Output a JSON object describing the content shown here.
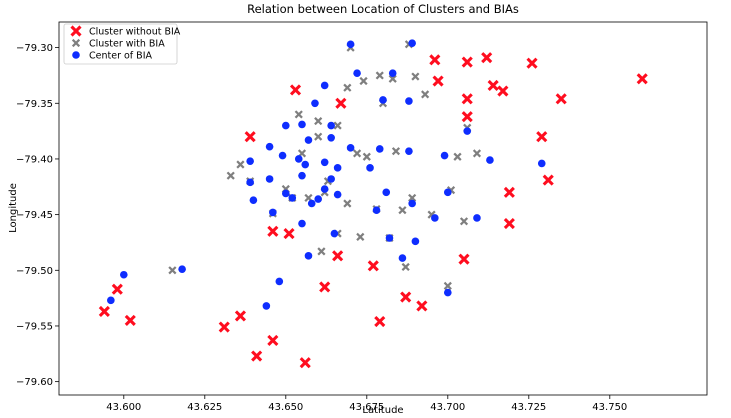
{
  "chart_data": {
    "type": "scatter",
    "title": "Relation between Location of Clusters and BIAs",
    "xlabel": "Latitude",
    "ylabel": "Longitude",
    "xlim": [
      43.58,
      43.78
    ],
    "ylim": [
      -79.612,
      -79.277
    ],
    "xticks": [
      43.6,
      43.625,
      43.65,
      43.675,
      43.7,
      43.725,
      43.75
    ],
    "xtick_labels": [
      "43.600",
      "43.625",
      "43.650",
      "43.675",
      "43.700",
      "43.725",
      "43.750"
    ],
    "yticks": [
      -79.3,
      -79.35,
      -79.4,
      -79.45,
      -79.5,
      -79.55,
      -79.6
    ],
    "ytick_labels": [
      "−79.30",
      "−79.35",
      "−79.40",
      "−79.45",
      "−79.50",
      "−79.55",
      "−79.60"
    ],
    "grid": false,
    "legend_position": "top-left",
    "series": [
      {
        "name": "Cluster without BIA",
        "color": "#ff0d1f",
        "marker": "x-bold",
        "points": [
          [
            43.594,
            -79.537
          ],
          [
            43.598,
            -79.517
          ],
          [
            43.602,
            -79.545
          ],
          [
            43.631,
            -79.551
          ],
          [
            43.636,
            -79.541
          ],
          [
            43.641,
            -79.577
          ],
          [
            43.646,
            -79.563
          ],
          [
            43.646,
            -79.465
          ],
          [
            43.639,
            -79.38
          ],
          [
            43.651,
            -79.467
          ],
          [
            43.653,
            -79.338
          ],
          [
            43.656,
            -79.583
          ],
          [
            43.662,
            -79.515
          ],
          [
            43.666,
            -79.487
          ],
          [
            43.667,
            -79.35
          ],
          [
            43.677,
            -79.496
          ],
          [
            43.679,
            -79.546
          ],
          [
            43.687,
            -79.524
          ],
          [
            43.692,
            -79.532
          ],
          [
            43.696,
            -79.311
          ],
          [
            43.697,
            -79.33
          ],
          [
            43.705,
            -79.49
          ],
          [
            43.706,
            -79.346
          ],
          [
            43.706,
            -79.362
          ],
          [
            43.706,
            -79.313
          ],
          [
            43.712,
            -79.309
          ],
          [
            43.714,
            -79.334
          ],
          [
            43.717,
            -79.339
          ],
          [
            43.719,
            -79.43
          ],
          [
            43.719,
            -79.458
          ],
          [
            43.726,
            -79.314
          ],
          [
            43.729,
            -79.38
          ],
          [
            43.731,
            -79.419
          ],
          [
            43.735,
            -79.346
          ],
          [
            43.76,
            -79.328
          ]
        ]
      },
      {
        "name": "Cluster with BIA",
        "color": "#7f7f7f",
        "marker": "x-bold",
        "points": [
          [
            43.615,
            -79.5
          ],
          [
            43.633,
            -79.415
          ],
          [
            43.636,
            -79.405
          ],
          [
            43.639,
            -79.42
          ],
          [
            43.646,
            -79.449
          ],
          [
            43.65,
            -79.427
          ],
          [
            43.652,
            -79.435
          ],
          [
            43.654,
            -79.36
          ],
          [
            43.655,
            -79.395
          ],
          [
            43.657,
            -79.435
          ],
          [
            43.66,
            -79.38
          ],
          [
            43.66,
            -79.366
          ],
          [
            43.661,
            -79.483
          ],
          [
            43.662,
            -79.43
          ],
          [
            43.663,
            -79.42
          ],
          [
            43.666,
            -79.37
          ],
          [
            43.666,
            -79.467
          ],
          [
            43.669,
            -79.336
          ],
          [
            43.669,
            -79.44
          ],
          [
            43.67,
            -79.3
          ],
          [
            43.672,
            -79.395
          ],
          [
            43.673,
            -79.47
          ],
          [
            43.674,
            -79.33
          ],
          [
            43.675,
            -79.398
          ],
          [
            43.678,
            -79.445
          ],
          [
            43.679,
            -79.325
          ],
          [
            43.68,
            -79.35
          ],
          [
            43.682,
            -79.471
          ],
          [
            43.683,
            -79.328
          ],
          [
            43.684,
            -79.393
          ],
          [
            43.686,
            -79.446
          ],
          [
            43.687,
            -79.497
          ],
          [
            43.688,
            -79.297
          ],
          [
            43.689,
            -79.435
          ],
          [
            43.69,
            -79.326
          ],
          [
            43.693,
            -79.342
          ],
          [
            43.695,
            -79.45
          ],
          [
            43.7,
            -79.514
          ],
          [
            43.701,
            -79.428
          ],
          [
            43.703,
            -79.398
          ],
          [
            43.705,
            -79.456
          ],
          [
            43.706,
            -79.372
          ],
          [
            43.709,
            -79.395
          ]
        ]
      },
      {
        "name": "Center of BIA",
        "color": "#0e2dff",
        "marker": "circle",
        "points": [
          [
            43.596,
            -79.527
          ],
          [
            43.6,
            -79.504
          ],
          [
            43.618,
            -79.499
          ],
          [
            43.639,
            -79.421
          ],
          [
            43.639,
            -79.402
          ],
          [
            43.64,
            -79.437
          ],
          [
            43.644,
            -79.532
          ],
          [
            43.645,
            -79.389
          ],
          [
            43.645,
            -79.418
          ],
          [
            43.646,
            -79.448
          ],
          [
            43.648,
            -79.51
          ],
          [
            43.649,
            -79.397
          ],
          [
            43.65,
            -79.37
          ],
          [
            43.65,
            -79.431
          ],
          [
            43.652,
            -79.435
          ],
          [
            43.654,
            -79.4
          ],
          [
            43.655,
            -79.415
          ],
          [
            43.655,
            -79.369
          ],
          [
            43.655,
            -79.458
          ],
          [
            43.656,
            -79.405
          ],
          [
            43.657,
            -79.383
          ],
          [
            43.657,
            -79.487
          ],
          [
            43.658,
            -79.44
          ],
          [
            43.659,
            -79.35
          ],
          [
            43.66,
            -79.436
          ],
          [
            43.662,
            -79.403
          ],
          [
            43.662,
            -79.427
          ],
          [
            43.662,
            -79.334
          ],
          [
            43.664,
            -79.418
          ],
          [
            43.664,
            -79.37
          ],
          [
            43.664,
            -79.381
          ],
          [
            43.665,
            -79.467
          ],
          [
            43.666,
            -79.408
          ],
          [
            43.666,
            -79.432
          ],
          [
            43.67,
            -79.39
          ],
          [
            43.67,
            -79.297
          ],
          [
            43.672,
            -79.323
          ],
          [
            43.676,
            -79.408
          ],
          [
            43.678,
            -79.446
          ],
          [
            43.679,
            -79.391
          ],
          [
            43.68,
            -79.347
          ],
          [
            43.681,
            -79.43
          ],
          [
            43.682,
            -79.471
          ],
          [
            43.683,
            -79.323
          ],
          [
            43.686,
            -79.489
          ],
          [
            43.688,
            -79.393
          ],
          [
            43.688,
            -79.348
          ],
          [
            43.689,
            -79.296
          ],
          [
            43.689,
            -79.44
          ],
          [
            43.69,
            -79.474
          ],
          [
            43.696,
            -79.453
          ],
          [
            43.699,
            -79.397
          ],
          [
            43.7,
            -79.43
          ],
          [
            43.7,
            -79.52
          ],
          [
            43.706,
            -79.375
          ],
          [
            43.709,
            -79.453
          ],
          [
            43.713,
            -79.401
          ],
          [
            43.729,
            -79.404
          ]
        ]
      }
    ]
  }
}
